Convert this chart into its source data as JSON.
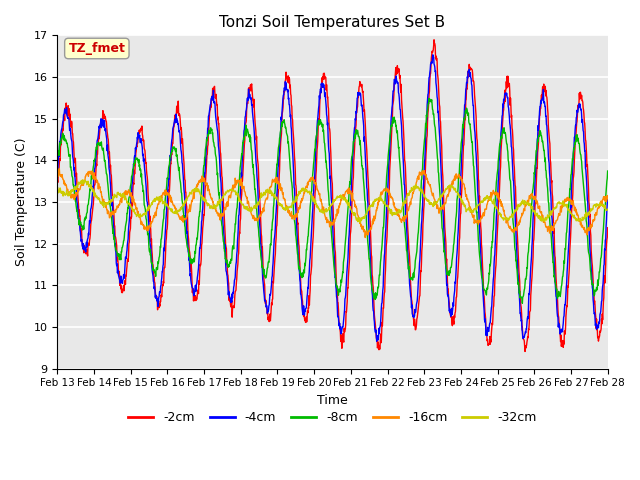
{
  "title": "Tonzi Soil Temperatures Set B",
  "xlabel": "Time",
  "ylabel": "Soil Temperature (C)",
  "ylim": [
    9.0,
    17.0
  ],
  "yticks": [
    9.0,
    10.0,
    11.0,
    12.0,
    13.0,
    14.0,
    15.0,
    16.0,
    17.0
  ],
  "xtick_labels": [
    "Feb 13",
    "Feb 14",
    "Feb 15",
    "Feb 16",
    "Feb 17",
    "Feb 18",
    "Feb 19",
    "Feb 20",
    "Feb 21",
    "Feb 22",
    "Feb 23",
    "Feb 24",
    "Feb 25",
    "Feb 26",
    "Feb 27",
    "Feb 28"
  ],
  "label_annotation": "TZ_fmet",
  "colors": {
    "-2cm": "#FF0000",
    "-4cm": "#0000FF",
    "-8cm": "#00BB00",
    "-16cm": "#FF8800",
    "-32cm": "#CCCC00"
  },
  "series_labels": [
    "-2cm",
    "-4cm",
    "-8cm",
    "-16cm",
    "-32cm"
  ],
  "background_color": "#E8E8E8",
  "grid_color": "#FFFFFF"
}
